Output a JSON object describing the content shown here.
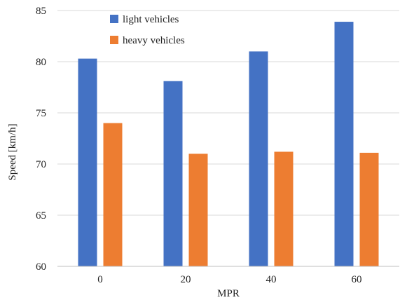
{
  "chart_data": {
    "type": "bar",
    "title": "",
    "xlabel": "MPR",
    "ylabel": "Speed [km/h]",
    "categories": [
      "0",
      "20",
      "40",
      "60"
    ],
    "ylim": [
      60,
      85
    ],
    "yticks": [
      60,
      65,
      70,
      75,
      80,
      85
    ],
    "grid": true,
    "legend_position": "top-left",
    "series": [
      {
        "name": "light vehicles",
        "color": "#4472c4",
        "values": [
          80.3,
          78.1,
          81.0,
          83.9
        ]
      },
      {
        "name": "heavy vehicles",
        "color": "#ed7d31",
        "values": [
          74.0,
          71.0,
          71.2,
          71.1
        ]
      }
    ]
  }
}
